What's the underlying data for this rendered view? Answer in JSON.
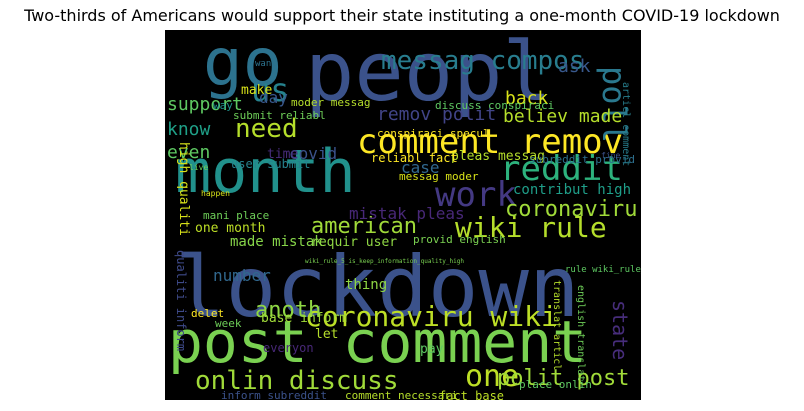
{
  "title": "Two-thirds of Americans would support their state instituting a one-month COVID-19 lockdown",
  "words": [
    {
      "text": "peopl",
      "color": "#3b528b"
    },
    {
      "text": "lockdown",
      "color": "#3b528b"
    },
    {
      "text": "month",
      "color": "#21918c"
    },
    {
      "text": "post comment",
      "color": "#7ad151"
    },
    {
      "text": "go",
      "color": "#2c728e"
    },
    {
      "text": "comment remov",
      "color": "#fde725"
    },
    {
      "text": "coronaviru wiki",
      "color": "#bddf26"
    },
    {
      "text": "onlin discuss",
      "color": "#a0da39"
    },
    {
      "text": "wiki rule",
      "color": "#b5de2b"
    },
    {
      "text": "reddit",
      "color": "#2db27d"
    },
    {
      "text": "work",
      "color": "#443983"
    },
    {
      "text": "need",
      "color": "#b5de2b"
    },
    {
      "text": "messag compos",
      "color": "#287d8e"
    },
    {
      "text": "us",
      "color": "#26828e"
    },
    {
      "text": "poll",
      "color": "#2a788e"
    },
    {
      "text": "one",
      "color": "#bddf26"
    },
    {
      "text": "polit post",
      "color": "#a0da39"
    },
    {
      "text": "american",
      "color": "#a0da39"
    },
    {
      "text": "anoth",
      "color": "#8fd744"
    },
    {
      "text": "coronaviru",
      "color": "#a0da39"
    },
    {
      "text": "support",
      "color": "#5ec962"
    },
    {
      "text": "know",
      "color": "#1fa088"
    },
    {
      "text": "even",
      "color": "#5ec962"
    },
    {
      "text": "remov polit",
      "color": "#414487"
    },
    {
      "text": "believ made",
      "color": "#b5de2b"
    },
    {
      "text": "back",
      "color": "#d8e219"
    },
    {
      "text": "ask",
      "color": "#38588c"
    },
    {
      "text": "state",
      "color": "#472d7b"
    },
    {
      "text": "case",
      "color": "#31688e"
    },
    {
      "text": "covid",
      "color": "#3b528b"
    },
    {
      "text": "mistak pleas",
      "color": "#482878"
    },
    {
      "text": "made mistak",
      "color": "#86d549"
    },
    {
      "text": "thing",
      "color": "#8fd744"
    },
    {
      "text": "day",
      "color": "#38588c"
    },
    {
      "text": "pleas messag",
      "color": "#b5de2b"
    },
    {
      "text": "reliabl fact",
      "color": "#fde725"
    },
    {
      "text": "messag moder",
      "color": "#d8e219"
    },
    {
      "text": "contribut high",
      "color": "#1f9e89"
    },
    {
      "text": "subreddit provid",
      "color": "#2d708e"
    },
    {
      "text": "requir user",
      "color": "#8fd744"
    },
    {
      "text": "moder messag",
      "color": "#b5de2b"
    },
    {
      "text": "time",
      "color": "#472d7b"
    },
    {
      "text": "user submit",
      "color": "#26828e"
    },
    {
      "text": "submit reliabl",
      "color": "#6ece58"
    },
    {
      "text": "conspiraci specul",
      "color": "#fde725"
    },
    {
      "text": "discuss conspiraci",
      "color": "#5ec962"
    },
    {
      "text": "one month",
      "color": "#bddf26"
    },
    {
      "text": "mani place",
      "color": "#6ece58"
    },
    {
      "text": "high qualiti",
      "color": "#d8e219"
    },
    {
      "text": "qualiti inform",
      "color": "#3e4a89"
    },
    {
      "text": "number",
      "color": "#31688e"
    },
    {
      "text": "pay",
      "color": "#5ec962"
    },
    {
      "text": "delet",
      "color": "#fde725"
    },
    {
      "text": "week",
      "color": "#6ece58"
    },
    {
      "text": "base inform",
      "color": "#a0da39"
    },
    {
      "text": "provid english",
      "color": "#7ad151"
    },
    {
      "text": "rule wiki_rule_5",
      "color": "#5ec962"
    },
    {
      "text": "english translat",
      "color": "#6ece58"
    },
    {
      "text": "translat articl",
      "color": "#b5de2b"
    },
    {
      "text": "let",
      "color": "#b5de2b"
    },
    {
      "text": "everyon",
      "color": "#482878"
    },
    {
      "text": "inform subreddit",
      "color": "#3b528b"
    },
    {
      "text": "comment necessari",
      "color": "#b5de2b"
    },
    {
      "text": "fact base",
      "color": "#bddf26"
    },
    {
      "text": "place onlin",
      "color": "#5ec962"
    },
    {
      "text": "articl comment",
      "color": "#277f8e"
    },
    {
      "text": "way",
      "color": "#21918c"
    },
    {
      "text": "make",
      "color": "#d8e219"
    },
    {
      "text": "wiki_rule_5_is_keep_information_quality_high",
      "color": "#7ad151"
    },
    {
      "text": "fine",
      "color": "#3b528b"
    },
    {
      "text": "want",
      "color": "#2c728e"
    },
    {
      "text": "live",
      "color": "#6ece58"
    },
    {
      "text": "happen",
      "color": "#d8e219"
    }
  ]
}
